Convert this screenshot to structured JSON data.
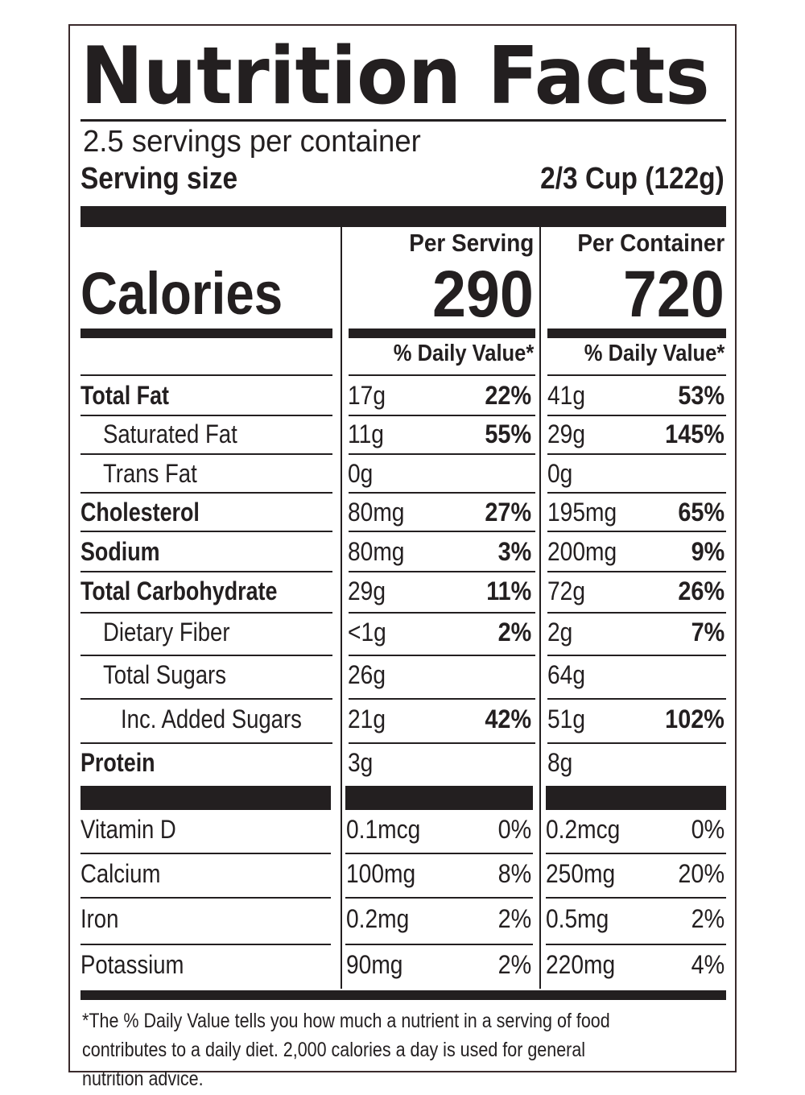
{
  "label": {
    "title": "Nutrition Facts",
    "servings_per_container": "2.5 servings per container",
    "serving_size_label": "Serving size",
    "serving_size_value": "2/3 Cup (122g)",
    "calories_label": "Calories",
    "per_serving_label": "Per Serving",
    "per_container_label": "Per Container",
    "calories_per_serving": "290",
    "calories_per_container": "720",
    "daily_value_header": "% Daily Value*",
    "rows": [
      {
        "name": "Total Fat",
        "bold": true,
        "indent": 0,
        "serving_amount": "17g",
        "serving_dv": "22%",
        "container_amount": "41g",
        "container_dv": "53%"
      },
      {
        "name": "Saturated Fat",
        "bold": false,
        "indent": 1,
        "serving_amount": "11g",
        "serving_dv": "55%",
        "container_amount": "29g",
        "container_dv": "145%"
      },
      {
        "name": "Trans Fat",
        "bold": false,
        "indent": 1,
        "serving_amount": "0g",
        "serving_dv": "",
        "container_amount": "0g",
        "container_dv": ""
      },
      {
        "name": "Cholesterol",
        "bold": true,
        "indent": 0,
        "serving_amount": "80mg",
        "serving_dv": "27%",
        "container_amount": "195mg",
        "container_dv": "65%"
      },
      {
        "name": "Sodium",
        "bold": true,
        "indent": 0,
        "serving_amount": "80mg",
        "serving_dv": "3%",
        "container_amount": "200mg",
        "container_dv": "9%"
      },
      {
        "name": "Total Carbohydrate",
        "bold": true,
        "indent": 0,
        "serving_amount": "29g",
        "serving_dv": "11%",
        "container_amount": "72g",
        "container_dv": "26%"
      },
      {
        "name": "Dietary Fiber",
        "bold": false,
        "indent": 1,
        "serving_amount": "<1g",
        "serving_dv": "2%",
        "container_amount": "2g",
        "container_dv": "7%"
      },
      {
        "name": "Total Sugars",
        "bold": false,
        "indent": 1,
        "serving_amount": "26g",
        "serving_dv": "",
        "container_amount": "64g",
        "container_dv": ""
      },
      {
        "name": "Inc. Added Sugars",
        "bold": false,
        "indent": 2,
        "serving_amount": "21g",
        "serving_dv": "42%",
        "container_amount": "51g",
        "container_dv": "102%"
      },
      {
        "name": "Protein",
        "bold": true,
        "indent": 0,
        "serving_amount": "3g",
        "serving_dv": "",
        "container_amount": "8g",
        "container_dv": ""
      }
    ],
    "vitamins": [
      {
        "name": "Vitamin D",
        "serving_amount": "0.1mcg",
        "serving_dv": "0%",
        "container_amount": "0.2mcg",
        "container_dv": "0%"
      },
      {
        "name": "Calcium",
        "serving_amount": "100mg",
        "serving_dv": "8%",
        "container_amount": "250mg",
        "container_dv": "20%"
      },
      {
        "name": "Iron",
        "serving_amount": "0.2mg",
        "serving_dv": "2%",
        "container_amount": "0.5mg",
        "container_dv": "2%"
      },
      {
        "name": "Potassium",
        "serving_amount": "90mg",
        "serving_dv": "2%",
        "container_amount": "220mg",
        "container_dv": "4%"
      }
    ],
    "footnote": "*The % Daily Value tells you how much a nutrient in a serving of food contributes to a daily diet. 2,000 calories a day is used for general nutrition advice."
  }
}
